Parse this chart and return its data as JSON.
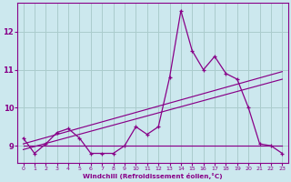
{
  "xlabel": "Windchill (Refroidissement éolien,°C)",
  "background_color": "#cce8ee",
  "grid_color": "#aacccc",
  "line_color": "#880088",
  "x_hours": [
    0,
    1,
    2,
    3,
    4,
    5,
    6,
    7,
    8,
    9,
    10,
    11,
    12,
    13,
    14,
    15,
    16,
    17,
    18,
    19,
    20,
    21,
    22,
    23
  ],
  "windchill": [
    9.2,
    8.8,
    9.05,
    9.35,
    9.45,
    9.2,
    8.8,
    8.8,
    8.8,
    9.0,
    9.5,
    9.3,
    9.5,
    10.8,
    12.55,
    11.5,
    11.0,
    11.35,
    10.9,
    10.75,
    10.0,
    9.05,
    9.0,
    8.8
  ],
  "ylim": [
    8.55,
    12.75
  ],
  "yticks": [
    9,
    10,
    11,
    12
  ],
  "xticks": [
    0,
    1,
    2,
    3,
    4,
    5,
    6,
    7,
    8,
    9,
    10,
    11,
    12,
    13,
    14,
    15,
    16,
    17,
    18,
    19,
    20,
    21,
    22,
    23
  ],
  "trend1_x": [
    0,
    23
  ],
  "trend1_y": [
    9.05,
    10.95
  ],
  "trend2_x": [
    0,
    23
  ],
  "trend2_y": [
    8.9,
    10.75
  ],
  "trend3_x": [
    0,
    23
  ],
  "trend3_y": [
    9.0,
    9.0
  ]
}
